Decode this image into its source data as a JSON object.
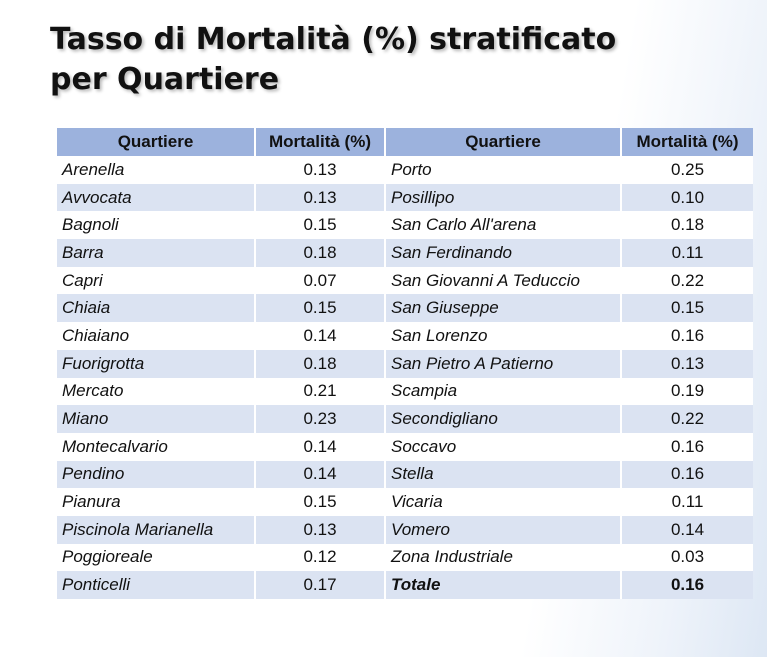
{
  "title": {
    "line1": "Tasso di Mortalità (%) stratificato",
    "line2": "per Quartiere"
  },
  "table": {
    "headers": [
      "Quartiere",
      "Mortalità (%)",
      "Quartiere",
      "Mortalità (%)"
    ],
    "rows": [
      {
        "left_name": "Arenella",
        "left_value": "0.13",
        "right_name": "Porto",
        "right_value": "0.25"
      },
      {
        "left_name": "Avvocata",
        "left_value": "0.13",
        "right_name": "Posillipo",
        "right_value": "0.10"
      },
      {
        "left_name": "Bagnoli",
        "left_value": "0.15",
        "right_name": "San Carlo All'arena",
        "right_value": "0.18"
      },
      {
        "left_name": "Barra",
        "left_value": "0.18",
        "right_name": "San Ferdinando",
        "right_value": "0.11"
      },
      {
        "left_name": "Capri",
        "left_value": "0.07",
        "right_name": "San Giovanni A Teduccio",
        "right_value": "0.22"
      },
      {
        "left_name": "Chiaia",
        "left_value": "0.15",
        "right_name": "San Giuseppe",
        "right_value": "0.15"
      },
      {
        "left_name": "Chiaiano",
        "left_value": "0.14",
        "right_name": "San Lorenzo",
        "right_value": "0.16"
      },
      {
        "left_name": "Fuorigrotta",
        "left_value": "0.18",
        "right_name": "San Pietro A Patierno",
        "right_value": "0.13"
      },
      {
        "left_name": "Mercato",
        "left_value": "0.21",
        "right_name": "Scampia",
        "right_value": "0.19"
      },
      {
        "left_name": "Miano",
        "left_value": "0.23",
        "right_name": "Secondigliano",
        "right_value": "0.22"
      },
      {
        "left_name": "Montecalvario",
        "left_value": "0.14",
        "right_name": "Soccavo",
        "right_value": "0.16"
      },
      {
        "left_name": "Pendino",
        "left_value": "0.14",
        "right_name": "Stella",
        "right_value": "0.16"
      },
      {
        "left_name": "Pianura",
        "left_value": "0.15",
        "right_name": "Vicaria",
        "right_value": "0.11"
      },
      {
        "left_name": "Piscinola Marianella",
        "left_value": "0.13",
        "right_name": "Vomero",
        "right_value": "0.14"
      },
      {
        "left_name": "Poggioreale",
        "left_value": "0.12",
        "right_name": "Zona Industriale",
        "right_value": "0.03"
      },
      {
        "left_name": "Ponticelli",
        "left_value": "0.17",
        "right_name": "Totale",
        "right_value": "0.16"
      }
    ]
  },
  "colors": {
    "header_bg": "#9cb2dd",
    "stripe_bg": "#dbe3f2",
    "row_bg": "#ffffff"
  }
}
